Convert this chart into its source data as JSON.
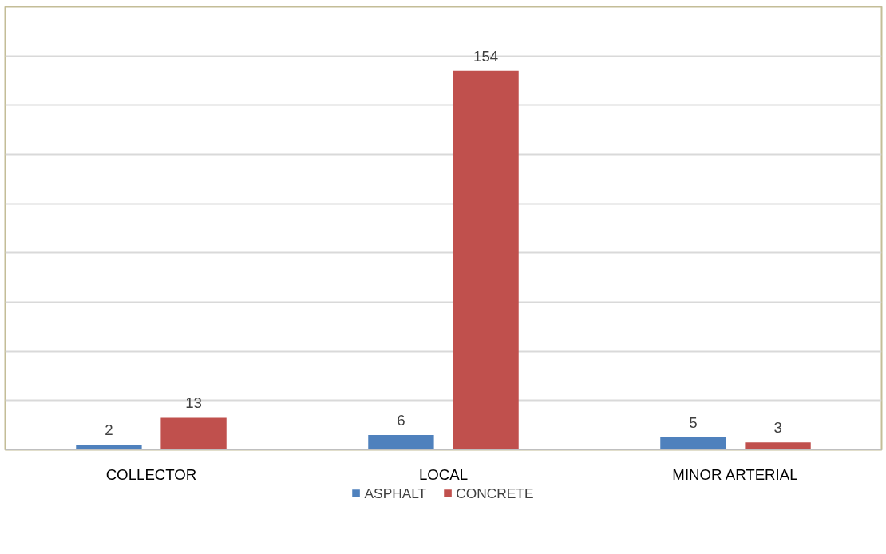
{
  "chart_data": {
    "type": "bar",
    "categories": [
      "COLLECTOR",
      "LOCAL",
      "MINOR ARTERIAL"
    ],
    "series": [
      {
        "name": "ASPHALT",
        "color": "#4f81bd",
        "values": [
          2,
          6,
          5
        ]
      },
      {
        "name": "CONCRETE",
        "color": "#c0504d",
        "values": [
          13,
          154,
          3
        ]
      }
    ],
    "ylim": [
      0,
      180
    ],
    "yticks": [
      {
        "value": 0,
        "label": null
      },
      {
        "value": 20,
        "label": null
      },
      {
        "value": 40,
        "label": null
      },
      {
        "value": 60,
        "label": null
      },
      {
        "value": 80,
        "label": null
      },
      {
        "value": 100,
        "label": null
      },
      {
        "value": 120,
        "label": null
      },
      {
        "value": 140,
        "label": null
      },
      {
        "value": 160,
        "label": null
      },
      {
        "value": 180,
        "label": null
      }
    ],
    "grid": "y",
    "legend": "bottom",
    "data_labels": true,
    "tick_labels": "x"
  }
}
